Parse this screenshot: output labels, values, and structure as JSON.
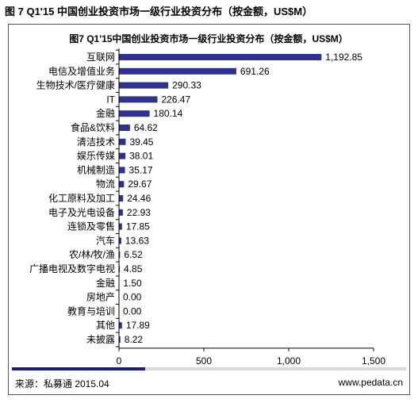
{
  "header": {
    "title": "图 7 Q1'15 中国创业投资市场一级行业投资分布（按金额，US$M）"
  },
  "footer": {
    "source": "来源：私募通 2015.04",
    "site": "www.pedata.cn"
  },
  "colors": {
    "bar": "#2e3192",
    "footer_accent": "#1f1f6e"
  },
  "chart_data": {
    "type": "bar",
    "orientation": "horizontal",
    "title": "图7 Q1'15中国创业投资市场一级行业投资分布（按金额，US$M）",
    "categories": [
      "互联网",
      "电信及增值业务",
      "生物技术/医疗健康",
      "IT",
      "金融",
      "食品&饮料",
      "清洁技术",
      "娱乐传媒",
      "机械制造",
      "物流",
      "化工原料及加工",
      "电子及光电设备",
      "连锁及零售",
      "汽车",
      "农/林/牧/渔",
      "广播电视及数字电视",
      "金融",
      "房地产",
      "教育与培训",
      "其他",
      "未披露"
    ],
    "values": [
      1192.85,
      691.26,
      290.33,
      226.47,
      180.14,
      64.62,
      39.45,
      38.01,
      35.17,
      29.67,
      24.46,
      22.93,
      17.85,
      13.63,
      6.52,
      4.85,
      1.5,
      0,
      0,
      17.89,
      8.22
    ],
    "value_labels": [
      "1,192.85",
      "691.26",
      "290.33",
      "226.47",
      "180.14",
      "64.62",
      "39.45",
      "38.01",
      "35.17",
      "29.67",
      "24.46",
      "22.93",
      "17.85",
      "13.63",
      "6.52",
      "4.85",
      "1.50",
      "0.00",
      "0.00",
      "17.89",
      "8.22"
    ],
    "xlim": [
      0,
      1500
    ],
    "xticks": [
      0,
      500,
      1000,
      1500
    ],
    "xtick_labels": [
      "0",
      "500",
      "1,000",
      "1,500"
    ],
    "xlabel": "",
    "ylabel": "",
    "grid": false,
    "legend": "none"
  }
}
